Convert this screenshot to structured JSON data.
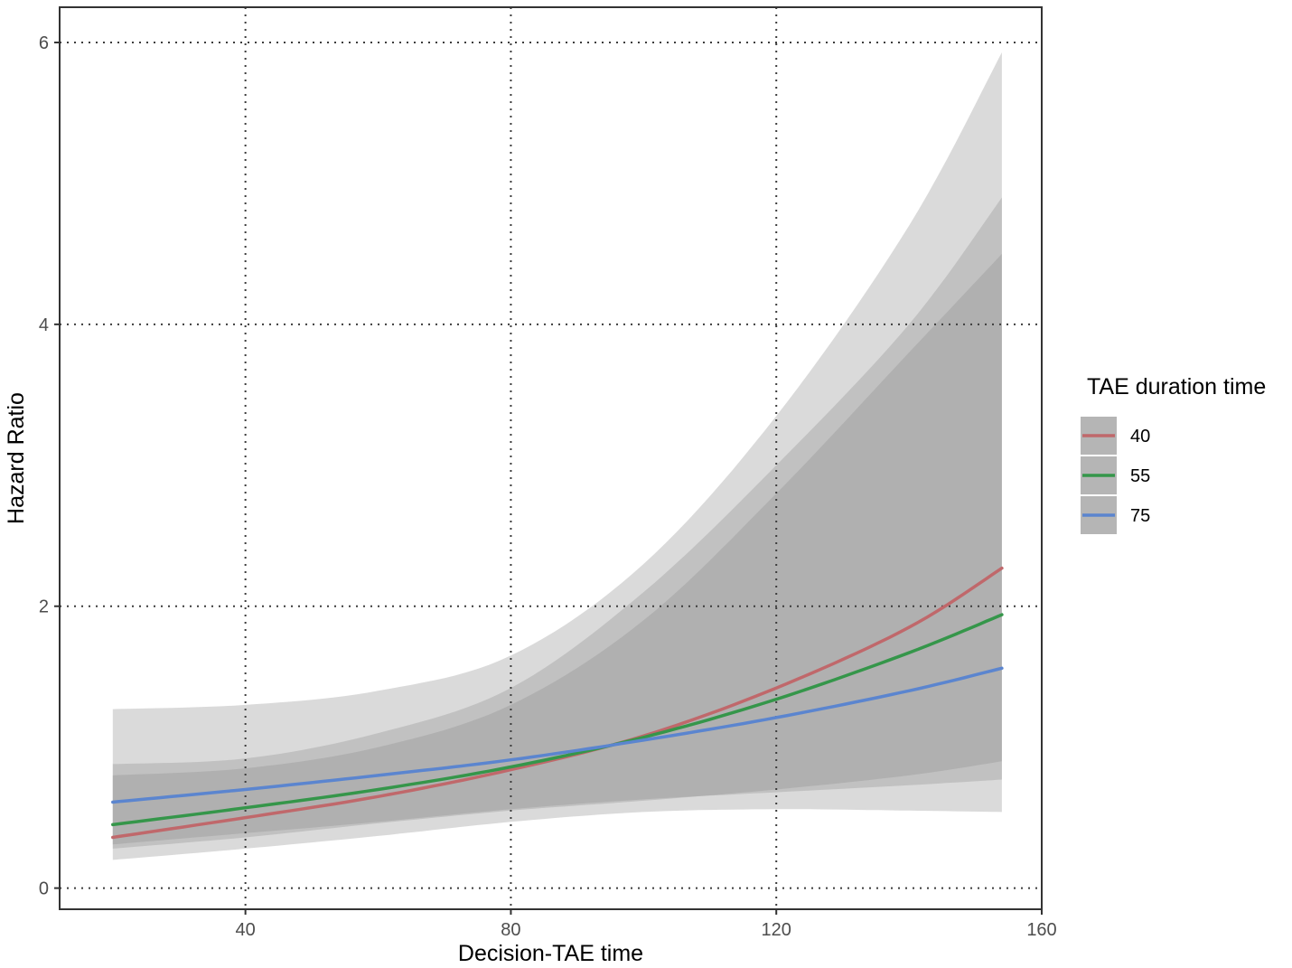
{
  "chart_data": {
    "type": "line",
    "title": "",
    "xlabel": "Decision-TAE time",
    "ylabel": "Hazard Ratio",
    "xlim": [
      12,
      160
    ],
    "ylim": [
      -0.15,
      6.25
    ],
    "xticks": [
      40,
      80,
      120,
      160
    ],
    "yticks": [
      0,
      2,
      4,
      6
    ],
    "grid": true,
    "legend": {
      "title": "TAE duration time",
      "position": "right"
    },
    "x": [
      20,
      40,
      60,
      80,
      100,
      120,
      140,
      154
    ],
    "series": [
      {
        "name": "40",
        "color": "#c0686b",
        "values": [
          0.36,
          0.5,
          0.65,
          0.84,
          1.08,
          1.42,
          1.85,
          2.27
        ],
        "lower": [
          0.28,
          0.36,
          0.46,
          0.55,
          0.62,
          0.7,
          0.8,
          0.9
        ],
        "upper": [
          0.88,
          0.92,
          1.1,
          1.42,
          2.1,
          3.0,
          4.0,
          4.9
        ]
      },
      {
        "name": "55",
        "color": "#35964a",
        "values": [
          0.45,
          0.57,
          0.7,
          0.86,
          1.07,
          1.34,
          1.67,
          1.94
        ],
        "lower": [
          0.31,
          0.39,
          0.47,
          0.56,
          0.63,
          0.68,
          0.73,
          0.77
        ],
        "upper": [
          0.8,
          0.85,
          1.0,
          1.3,
          1.9,
          2.8,
          3.8,
          4.5
        ]
      },
      {
        "name": "75",
        "color": "#5b85cf",
        "values": [
          0.61,
          0.7,
          0.8,
          0.91,
          1.05,
          1.21,
          1.4,
          1.56
        ],
        "lower": [
          0.2,
          0.28,
          0.37,
          0.47,
          0.54,
          0.56,
          0.55,
          0.54
        ],
        "upper": [
          1.27,
          1.3,
          1.4,
          1.65,
          2.3,
          3.35,
          4.7,
          5.93
        ]
      }
    ]
  }
}
